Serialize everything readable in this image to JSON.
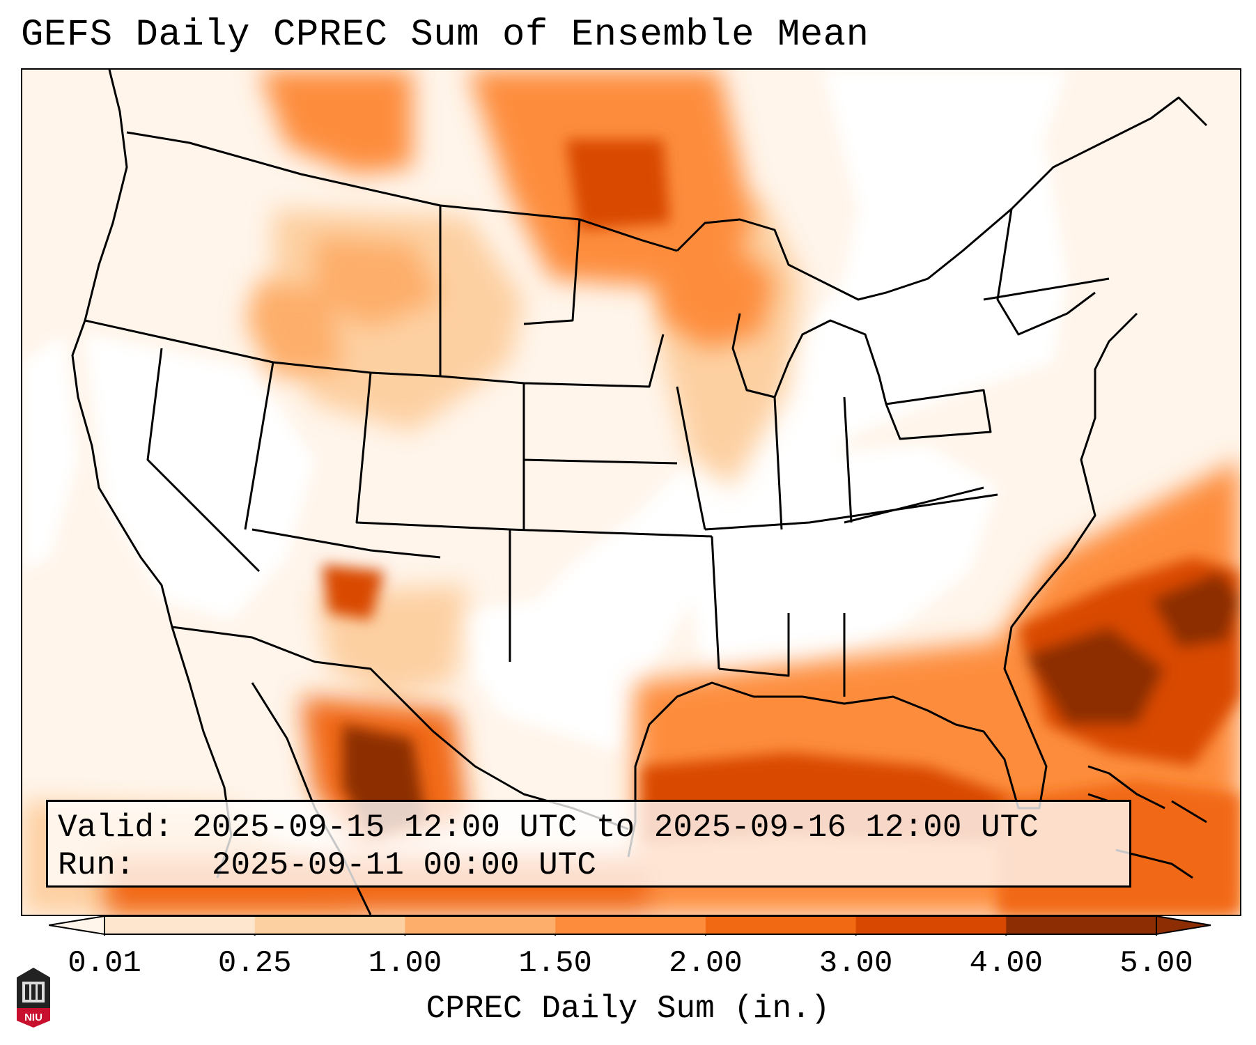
{
  "title": "GEFS Daily CPREC Sum of Ensemble Mean",
  "info": {
    "valid_label": "Valid:",
    "valid_value": "2025-09-15 12:00 UTC to 2025-09-16 12:00 UTC",
    "run_label": "Run:",
    "run_value": "2025-09-11 00:00 UTC"
  },
  "colorbar": {
    "label": "CPREC Daily Sum (in.)",
    "ticks": [
      "0.01",
      "0.25",
      "1.00",
      "1.50",
      "2.00",
      "3.00",
      "4.00",
      "5.00"
    ],
    "colors": [
      "#fff5eb",
      "#fee6ce",
      "#fdd0a2",
      "#fdae6b",
      "#fd8d3c",
      "#f16913",
      "#d94801",
      "#8c2d04"
    ],
    "under_color": "#fff5eb",
    "over_color": "#8c2d04"
  },
  "logo": {
    "text": "NIU",
    "color": "#c8102e"
  },
  "colors": {
    "background": "#ffffff",
    "border": "#000000",
    "coast": "#000000"
  }
}
